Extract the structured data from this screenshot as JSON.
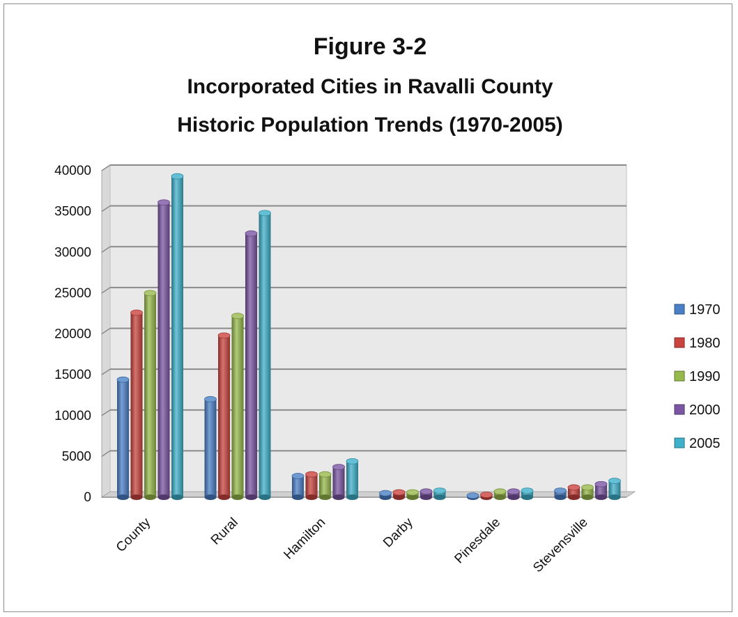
{
  "chart_data": {
    "type": "bar",
    "title": "Figure 3-2",
    "subtitle_lines": [
      "Incorporated Cities in Ravalli County",
      "Historic Population  Trends (1970-2005)"
    ],
    "xlabel": "",
    "ylabel": "",
    "ylim": [
      0,
      40000
    ],
    "yticks": [
      "0",
      "5000",
      "10000",
      "15000",
      "20000",
      "25000",
      "30000",
      "35000",
      "40000"
    ],
    "grid": true,
    "legend_position": "right",
    "categories": [
      "County",
      "Rural",
      "Hamilton",
      "Darby",
      "Pinesdale",
      "Stevensville"
    ],
    "series": [
      {
        "name": "1970",
        "color": "#4a7fc6",
        "values": [
          14400,
          12000,
          2600,
          500,
          200,
          800
        ]
      },
      {
        "name": "1980",
        "color": "#c9443f",
        "values": [
          22600,
          19800,
          2800,
          600,
          300,
          1200
        ]
      },
      {
        "name": "1990",
        "color": "#97b94b",
        "values": [
          25000,
          22200,
          2800,
          600,
          700,
          1200
        ]
      },
      {
        "name": "2000",
        "color": "#7b56a3",
        "values": [
          36100,
          32300,
          3700,
          700,
          700,
          1600
        ]
      },
      {
        "name": "2005",
        "color": "#3fb0ca",
        "values": [
          39300,
          34800,
          4400,
          800,
          800,
          2000
        ]
      }
    ]
  }
}
